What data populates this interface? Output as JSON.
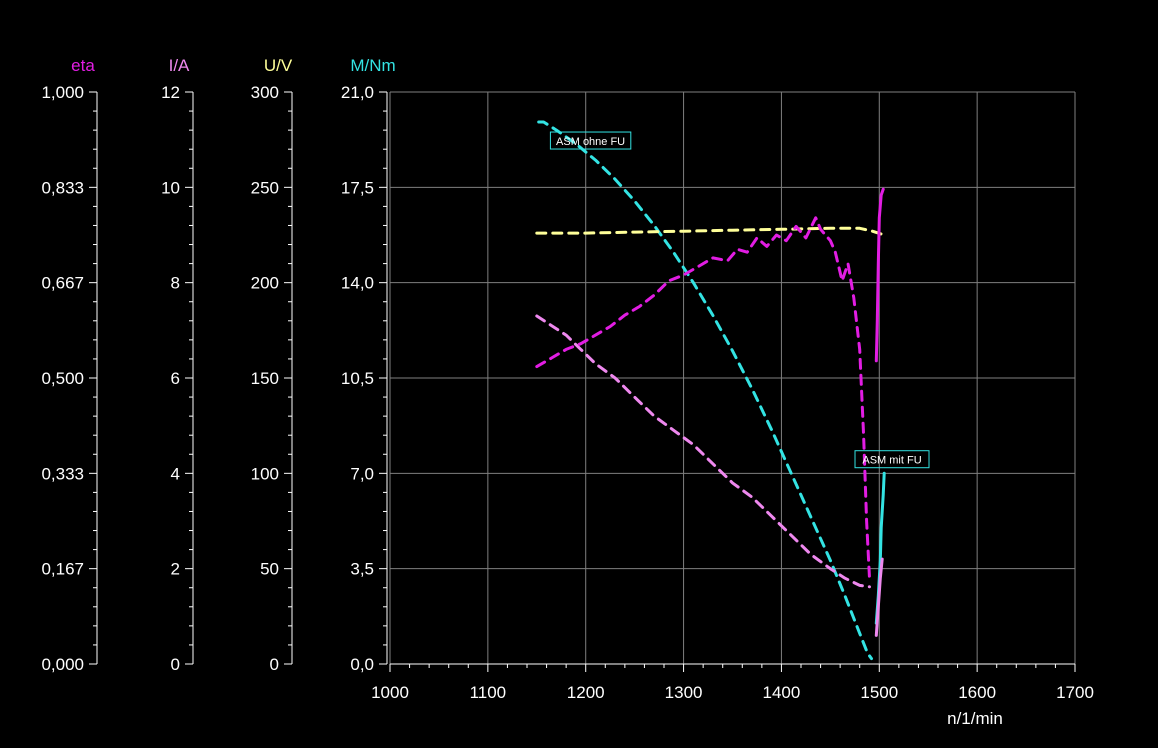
{
  "colors": {
    "background": "#000000",
    "grid": "#7f7f7f",
    "axis": "#ffffff",
    "eta": "#e21de3",
    "current": "#ee88ee",
    "voltage": "#ffff99",
    "torque": "#33e3e3",
    "annotation_border": "#33e3e3"
  },
  "chart_data": {
    "type": "line",
    "grid": true,
    "x_axis": {
      "label": "n/1/min",
      "range": [
        1000,
        1700
      ],
      "ticks": [
        "1000",
        "1100",
        "1200",
        "1300",
        "1400",
        "1500",
        "1600",
        "1700"
      ]
    },
    "y_axes": [
      {
        "key": "eta",
        "label": "eta",
        "range": [
          0,
          1
        ],
        "color": "#e21de3",
        "ticks": [
          "0,000",
          "0,167",
          "0,333",
          "0,500",
          "0,667",
          "0,833",
          "1,000"
        ]
      },
      {
        "key": "current",
        "label": "I/A",
        "range": [
          0,
          12
        ],
        "color": "#ee88ee",
        "ticks": [
          "0",
          "2",
          "4",
          "6",
          "8",
          "10",
          "12"
        ]
      },
      {
        "key": "voltage",
        "label": "U/V",
        "range": [
          0,
          300
        ],
        "color": "#ffff99",
        "ticks": [
          "0",
          "50",
          "100",
          "150",
          "200",
          "250",
          "300"
        ]
      },
      {
        "key": "torque",
        "label": "M/Nm",
        "range": [
          0,
          21
        ],
        "color": "#33e3e3",
        "ticks": [
          "0,0",
          "3,5",
          "7,0",
          "10,5",
          "14,0",
          "17,5",
          "21,0"
        ]
      }
    ],
    "annotations": [
      {
        "text": "ASM ohne FU",
        "x": 1205,
        "y_torque": 19.2
      },
      {
        "text": "ASM mit FU",
        "x": 1513,
        "y_torque": 7.5
      }
    ],
    "series": [
      {
        "axis": "torque",
        "style": "dashed",
        "color": "#33e3e3",
        "points": [
          [
            1152,
            19.9
          ],
          [
            1157,
            19.9
          ],
          [
            1170,
            19.6
          ],
          [
            1190,
            19.1
          ],
          [
            1210,
            18.5
          ],
          [
            1230,
            17.8
          ],
          [
            1250,
            17.0
          ],
          [
            1270,
            16.1
          ],
          [
            1290,
            15.1
          ],
          [
            1310,
            14.0
          ],
          [
            1330,
            12.8
          ],
          [
            1350,
            11.5
          ],
          [
            1370,
            10.1
          ],
          [
            1390,
            8.6
          ],
          [
            1410,
            7.0
          ],
          [
            1430,
            5.4
          ],
          [
            1450,
            3.8
          ],
          [
            1465,
            2.5
          ],
          [
            1478,
            1.3
          ],
          [
            1488,
            0.4
          ],
          [
            1492,
            0.2
          ]
        ]
      },
      {
        "axis": "torque",
        "style": "solid",
        "color": "#33e3e3",
        "points": [
          [
            1497,
            1.5
          ],
          [
            1499,
            2.5
          ],
          [
            1501,
            3.8
          ],
          [
            1502,
            5.0
          ],
          [
            1504,
            6.2
          ],
          [
            1505,
            7.0
          ]
        ]
      },
      {
        "axis": "voltage",
        "style": "dashed",
        "color": "#ffff99",
        "points": [
          [
            1150,
            226
          ],
          [
            1200,
            226
          ],
          [
            1250,
            226.5
          ],
          [
            1300,
            227
          ],
          [
            1350,
            227.5
          ],
          [
            1400,
            228
          ],
          [
            1450,
            228.5
          ],
          [
            1480,
            228.5
          ],
          [
            1493,
            227
          ],
          [
            1505,
            225
          ]
        ]
      },
      {
        "axis": "current",
        "style": "dashed",
        "color": "#ee88ee",
        "points": [
          [
            1150,
            7.3
          ],
          [
            1165,
            7.1
          ],
          [
            1180,
            6.9
          ],
          [
            1195,
            6.6
          ],
          [
            1210,
            6.3
          ],
          [
            1230,
            6.0
          ],
          [
            1250,
            5.6
          ],
          [
            1270,
            5.2
          ],
          [
            1290,
            4.9
          ],
          [
            1310,
            4.6
          ],
          [
            1330,
            4.2
          ],
          [
            1350,
            3.8
          ],
          [
            1370,
            3.5
          ],
          [
            1390,
            3.1
          ],
          [
            1410,
            2.7
          ],
          [
            1430,
            2.3
          ],
          [
            1450,
            2.0
          ],
          [
            1465,
            1.8
          ],
          [
            1480,
            1.65
          ],
          [
            1490,
            1.62
          ]
        ]
      },
      {
        "axis": "current",
        "style": "solid",
        "color": "#ee88ee",
        "points": [
          [
            1497,
            0.6
          ],
          [
            1499,
            1.2
          ],
          [
            1501,
            1.8
          ],
          [
            1503,
            2.2
          ]
        ]
      },
      {
        "axis": "eta",
        "style": "dashed",
        "color": "#e21de3",
        "points": [
          [
            1150,
            0.52
          ],
          [
            1165,
            0.535
          ],
          [
            1180,
            0.55
          ],
          [
            1195,
            0.56
          ],
          [
            1210,
            0.575
          ],
          [
            1225,
            0.59
          ],
          [
            1240,
            0.61
          ],
          [
            1255,
            0.625
          ],
          [
            1270,
            0.645
          ],
          [
            1285,
            0.67
          ],
          [
            1300,
            0.68
          ],
          [
            1315,
            0.695
          ],
          [
            1330,
            0.71
          ],
          [
            1345,
            0.705
          ],
          [
            1355,
            0.725
          ],
          [
            1365,
            0.72
          ],
          [
            1375,
            0.745
          ],
          [
            1385,
            0.73
          ],
          [
            1395,
            0.75
          ],
          [
            1405,
            0.74
          ],
          [
            1415,
            0.765
          ],
          [
            1425,
            0.745
          ],
          [
            1435,
            0.78
          ],
          [
            1440,
            0.76
          ],
          [
            1450,
            0.74
          ],
          [
            1455,
            0.72
          ],
          [
            1462,
            0.67
          ],
          [
            1468,
            0.7
          ],
          [
            1474,
            0.64
          ],
          [
            1480,
            0.55
          ],
          [
            1484,
            0.4
          ],
          [
            1487,
            0.25
          ],
          [
            1490,
            0.15
          ]
        ]
      },
      {
        "axis": "eta",
        "style": "solid",
        "color": "#e21de3",
        "points": [
          [
            1497,
            0.53
          ],
          [
            1498,
            0.6
          ],
          [
            1499,
            0.7
          ],
          [
            1500,
            0.78
          ],
          [
            1502,
            0.82
          ],
          [
            1504,
            0.83
          ]
        ]
      }
    ]
  }
}
